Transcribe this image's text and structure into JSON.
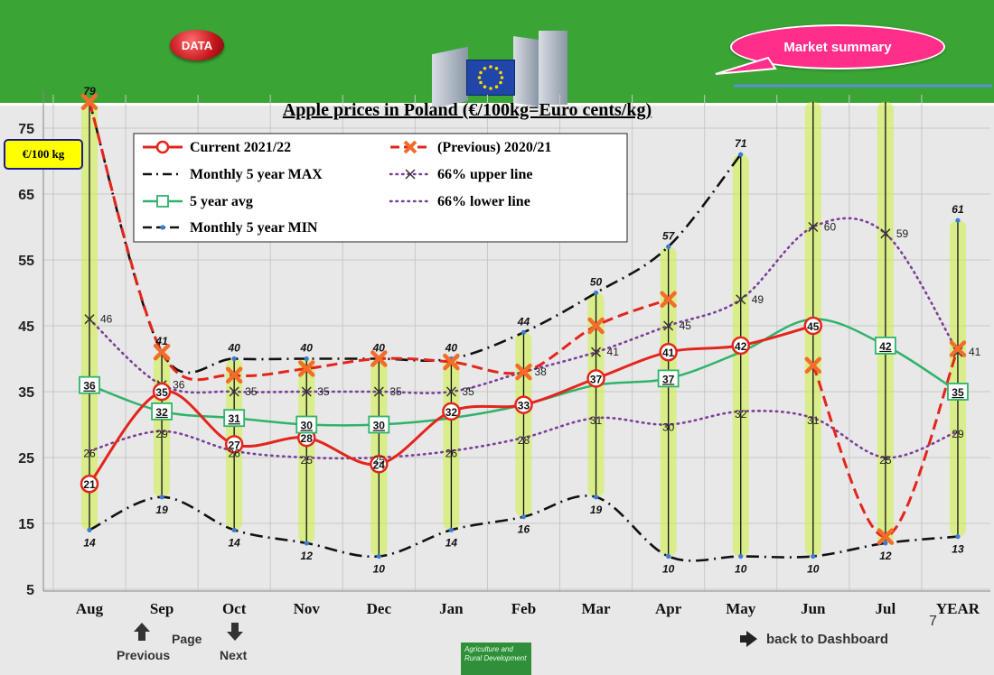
{
  "header": {
    "data_button_label": "DATA",
    "market_summary_label": "Market summary"
  },
  "unit_label": "€/100 kg",
  "nav": {
    "previous_label": "Previous",
    "page_label": "Page",
    "next_label": "Next",
    "back_label": "back to Dashboard",
    "page_number": "7"
  },
  "footer_logo_text": "Agriculture and Rural Development",
  "colors": {
    "header_green": "#3aa535",
    "current": "#e3251c",
    "previous": "#e3251c",
    "previous_marker": "#f26c2a",
    "max_min": "#111111",
    "upper_lower": "#7b3f98",
    "avg": "#2fb36a",
    "highlight": "#ccf03c"
  },
  "chart_data": {
    "type": "line",
    "title": "Apple prices in Poland (€/100kg=Euro cents/kg)",
    "xlabel": "",
    "ylabel": "",
    "categories": [
      "Aug",
      "Sep",
      "Oct",
      "Nov",
      "Dec",
      "Jan",
      "Feb",
      "Mar",
      "Apr",
      "May",
      "Jun",
      "Jul",
      "YEAR"
    ],
    "ylim": [
      5,
      79
    ],
    "yticks": [
      5,
      15,
      25,
      35,
      45,
      55,
      65,
      75
    ],
    "grid": true,
    "legend_position": "top-left",
    "series": [
      {
        "name": "Current 2021/22",
        "key": "current",
        "values": [
          21,
          35,
          27,
          28,
          24,
          32,
          33,
          37,
          41,
          42,
          45,
          null,
          null
        ]
      },
      {
        "name": "(Previous) 2020/21",
        "key": "previous",
        "values": [
          79,
          41,
          37.5,
          38.5,
          40,
          39.5,
          38,
          45,
          49,
          null,
          39,
          13,
          41.5
        ]
      },
      {
        "name": "Monthly 5 year MAX",
        "key": "max",
        "values": [
          79,
          41,
          40,
          40,
          40,
          40,
          44,
          50,
          57,
          71,
          null,
          null,
          61
        ]
      },
      {
        "name": "66% upper line",
        "key": "upper",
        "values": [
          46,
          36,
          35,
          35,
          35,
          35,
          38,
          41,
          45,
          49,
          60,
          59,
          41
        ]
      },
      {
        "name": "5 year avg",
        "key": "avg",
        "values": [
          36,
          32,
          31,
          30,
          30,
          31,
          33,
          36,
          37,
          41,
          46,
          42,
          35
        ]
      },
      {
        "name": "66% lower line",
        "key": "lower",
        "values": [
          26,
          29,
          26,
          25,
          25,
          26,
          28,
          31,
          30,
          32,
          31,
          25,
          29
        ]
      },
      {
        "name": "Monthly 5 year MIN",
        "key": "min",
        "values": [
          14,
          19,
          14,
          12,
          10,
          14,
          16,
          19,
          10,
          10,
          10,
          12,
          13
        ]
      }
    ]
  }
}
